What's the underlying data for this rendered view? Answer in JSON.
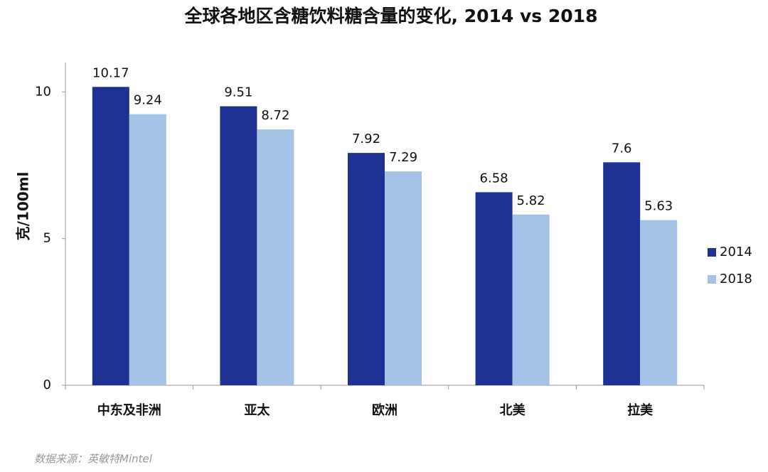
{
  "chart_data": {
    "type": "bar",
    "title": "全球各地区含糖饮料糖含量的变化, 2014 vs 2018",
    "y_label": "克/100ml",
    "source": "数据来源：英敏特Mintel",
    "categories": [
      "中东及非洲",
      "亚太",
      "欧洲",
      "北美",
      "拉美"
    ],
    "series": [
      {
        "name": "2014",
        "color": "#1f3193",
        "values": [
          10.17,
          9.51,
          7.92,
          6.58,
          7.6
        ]
      },
      {
        "name": "2018",
        "color": "#a4c3e6",
        "values": [
          9.24,
          8.72,
          7.29,
          5.82,
          5.63
        ]
      }
    ],
    "ylim": [
      0,
      11
    ],
    "yticks": [
      0,
      5,
      10
    ],
    "grid": false,
    "legend": "right"
  }
}
